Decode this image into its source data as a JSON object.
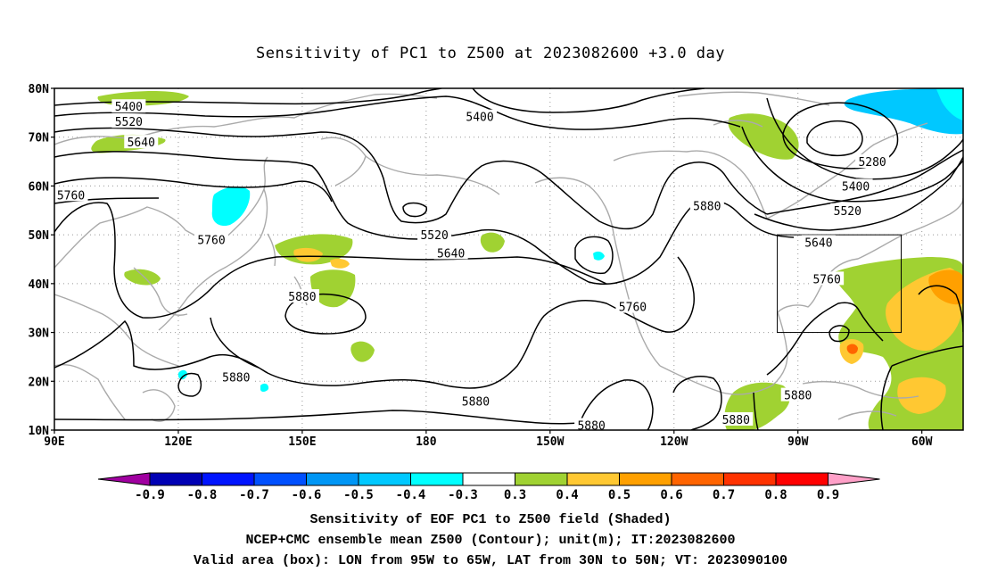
{
  "title": "Sensitivity of PC1 to Z500 at 2023082600 +3.0 day",
  "lat_labels": [
    "80N",
    "70N",
    "60N",
    "50N",
    "40N",
    "30N",
    "20N",
    "10N"
  ],
  "lon_labels": [
    "90E",
    "120E",
    "150E",
    "180",
    "150W",
    "120W",
    "90W",
    "60W"
  ],
  "contour_labels": [
    {
      "text": "5400",
      "lon": 108,
      "lat": 76.3
    },
    {
      "text": "5400",
      "lon": 193,
      "lat": 74.2
    },
    {
      "text": "5520",
      "lon": 108,
      "lat": 73.2
    },
    {
      "text": "5640",
      "lon": 111,
      "lat": 69.0
    },
    {
      "text": "5760",
      "lon": 94,
      "lat": 58.2
    },
    {
      "text": "5520",
      "lon": 182,
      "lat": 50.0
    },
    {
      "text": "5640",
      "lon": 186,
      "lat": 46.3
    },
    {
      "text": "5760",
      "lon": 128,
      "lat": 49.0
    },
    {
      "text": "5880",
      "lon": 150,
      "lat": 37.4
    },
    {
      "text": "5760",
      "lon": 230,
      "lat": 35.3
    },
    {
      "text": "5880",
      "lon": 248,
      "lat": 56.0
    },
    {
      "text": "5280",
      "lon": 288,
      "lat": 65.0
    },
    {
      "text": "5400",
      "lon": 284,
      "lat": 60.0
    },
    {
      "text": "5520",
      "lon": 282,
      "lat": 55.0
    },
    {
      "text": "5640",
      "lon": 275,
      "lat": 48.5
    },
    {
      "text": "5760",
      "lon": 277,
      "lat": 41.0
    },
    {
      "text": "5880",
      "lon": 134,
      "lat": 20.9
    },
    {
      "text": "5880",
      "lon": 192,
      "lat": 15.9
    },
    {
      "text": "5880",
      "lon": 220,
      "lat": 11.0
    },
    {
      "text": "5880",
      "lon": 255,
      "lat": 12.2
    },
    {
      "text": "5880",
      "lon": 270,
      "lat": 17.2
    }
  ],
  "colorbar": {
    "labels": [
      "-0.9",
      "-0.8",
      "-0.7",
      "-0.6",
      "-0.5",
      "-0.4",
      "-0.3",
      "0.3",
      "0.4",
      "0.5",
      "0.6",
      "0.7",
      "0.8",
      "0.9"
    ],
    "colors": [
      "#a000a0",
      "#0000b4",
      "#0014ff",
      "#0050ff",
      "#0096f5",
      "#00c8ff",
      "#00ffff",
      "#ffffff",
      "#a0d232",
      "#ffc832",
      "#ffa000",
      "#ff6400",
      "#ff3200",
      "#ff0000",
      "#ffa0c8"
    ]
  },
  "valid_box": {
    "lon_west": 265,
    "lon_east": 295,
    "lat_south": 30,
    "lat_north": 50
  },
  "captions": {
    "line1": "Sensitivity of EOF PC1 to Z500 field (Shaded)",
    "line2": "NCEP+CMC ensemble mean Z500 (Contour); unit(m); IT:2023082600",
    "line3": "Valid area (box): LON from 95W to 65W, LAT from 30N to 50N; VT: 2023090100"
  }
}
